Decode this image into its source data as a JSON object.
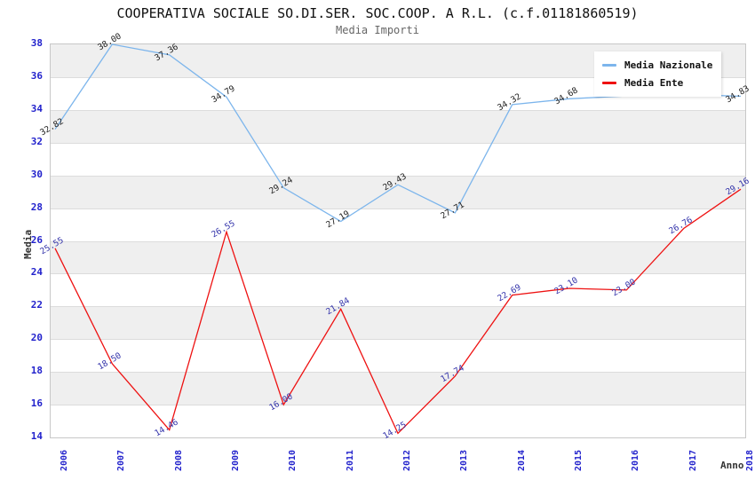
{
  "header": {
    "title": "COOPERATIVA SOCIALE SO.DI.SER. SOC.COOP. A R.L. (c.f.01181860519)",
    "subtitle": "Media Importi"
  },
  "chart_data": {
    "type": "line",
    "title": "COOPERATIVA SOCIALE SO.DI.SER. SOC.COOP. A R.L. (c.f.01181860519)",
    "subtitle": "Media Importi",
    "xlabel": "Anno",
    "ylabel": "Media",
    "x": [
      2006,
      2007,
      2008,
      2009,
      2010,
      2011,
      2012,
      2013,
      2014,
      2015,
      2016,
      2017,
      2018
    ],
    "ylim": [
      14,
      38
    ],
    "ytick_step": 2,
    "grid": "horizontal-bands-alternating",
    "legend_position": "top-right",
    "series": [
      {
        "name": "Media Nazionale",
        "color": "#7cb5ec",
        "label_color": "#222222",
        "values": [
          32.82,
          38.0,
          37.36,
          34.79,
          29.24,
          27.19,
          29.43,
          27.71,
          34.32,
          34.68,
          34.85,
          34.95,
          34.83
        ],
        "point_labels": [
          "32.82",
          "38.00",
          "37.36",
          "34.79",
          "29.24",
          "27.19",
          "29.43",
          "27.71",
          "34.32",
          "34.68",
          "",
          "",
          "34.83"
        ]
      },
      {
        "name": "Media Ente",
        "color": "#ee1111",
        "label_color": "#3333aa",
        "values": [
          25.55,
          18.5,
          14.46,
          26.55,
          16.0,
          21.84,
          14.25,
          17.74,
          22.69,
          23.1,
          23.0,
          26.76,
          29.16
        ],
        "point_labels": [
          "25.55",
          "18.50",
          "14.46",
          "26.55",
          "16.00",
          "21.84",
          "14.25",
          "17.74",
          "22.69",
          "23.10",
          "23.00",
          "26.76",
          "29.16"
        ]
      }
    ]
  },
  "colors": {
    "tick_text": "#2222cc",
    "band_gray": "#efefef",
    "band_white": "#ffffff",
    "gridline": "#dcdcdc",
    "plot_border": "#c8c8c8",
    "title_text": "#111111",
    "subtitle_text": "#666666",
    "axis_label_text": "#333333"
  }
}
